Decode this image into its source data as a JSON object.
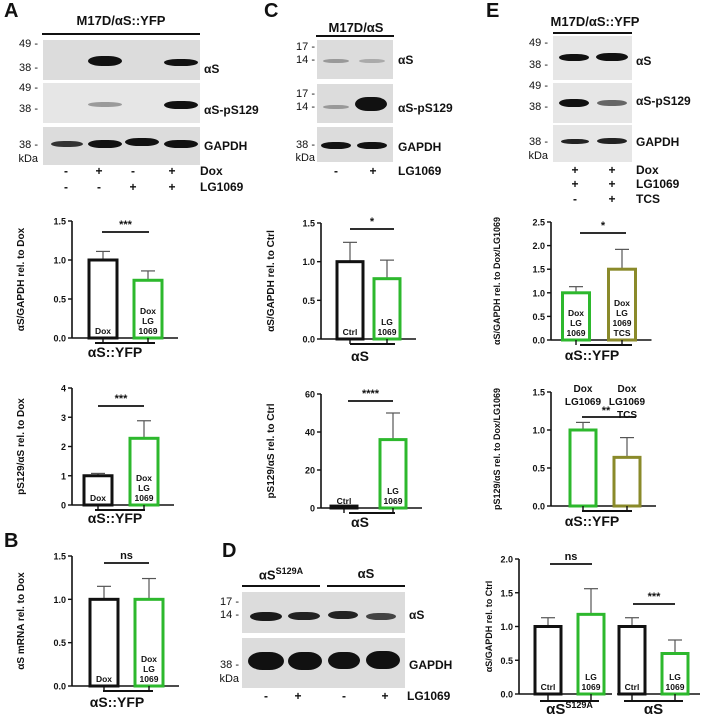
{
  "colors": {
    "control": "#111111",
    "lg1069": "#2db82d",
    "tcs": "#8a8a2a",
    "blot_bg": "#dcdcdc",
    "band": "#111111"
  },
  "panels": {
    "A": {
      "letter": "A",
      "blot_title": "M17D/αS::YFP",
      "rows": [
        {
          "label": "αS",
          "mw": [
            "49 -",
            "38 -"
          ]
        },
        {
          "label": "αS-pS129",
          "mw": [
            "49 -",
            "38 -"
          ]
        },
        {
          "label": "GAPDH",
          "mw": [
            "38 -"
          ]
        }
      ],
      "kda": "kDa",
      "treatments": [
        {
          "name": "Dox",
          "signs": [
            "-",
            "+",
            "-",
            "+"
          ]
        },
        {
          "name": "LG1069",
          "signs": [
            "-",
            "-",
            "+",
            "+"
          ]
        }
      ]
    },
    "B": {
      "letter": "B"
    },
    "C": {
      "letter": "C",
      "blot_title": "M17D/αS",
      "rows": [
        {
          "label": "αS",
          "mw": [
            "17 -",
            "14 -"
          ]
        },
        {
          "label": "αS-pS129",
          "mw": [
            "17 -",
            "14 -"
          ]
        },
        {
          "label": "GAPDH",
          "mw": [
            "38 -"
          ]
        }
      ],
      "kda": "kDa",
      "treatments": [
        {
          "name": "LG1069",
          "signs": [
            "-",
            "+"
          ]
        }
      ]
    },
    "D": {
      "letter": "D",
      "group_titles": [
        "αS",
        "αS"
      ],
      "group_superscripts": [
        "S129A",
        ""
      ],
      "rows": [
        {
          "label": "αS",
          "mw": [
            "17 -",
            "14 -"
          ]
        },
        {
          "label": "GAPDH",
          "mw": [
            "38 -"
          ]
        }
      ],
      "kda": "kDa",
      "treatments": [
        {
          "name": "LG1069",
          "signs": [
            "-",
            "+",
            "-",
            "+"
          ]
        }
      ]
    },
    "E": {
      "letter": "E",
      "blot_title": "M17D/αS::YFP",
      "rows": [
        {
          "label": "αS",
          "mw": [
            "49 -",
            "38 -"
          ]
        },
        {
          "label": "αS-pS129",
          "mw": [
            "49 -",
            "38 -"
          ]
        },
        {
          "label": "GAPDH",
          "mw": [
            "38 -"
          ]
        }
      ],
      "kda": "kDa",
      "treatments": [
        {
          "name": "Dox",
          "signs": [
            "+",
            "+"
          ]
        },
        {
          "name": "LG1069",
          "signs": [
            "+",
            "+"
          ]
        },
        {
          "name": "TCS",
          "signs": [
            "-",
            "+"
          ]
        }
      ]
    }
  },
  "chart_data": [
    {
      "id": "A1",
      "type": "bar",
      "panel": "A",
      "ylabel": "αS/GAPDH rel. to Dox",
      "xlabel": "αS::YFP",
      "ylim": [
        0,
        1.5
      ],
      "yticks": [
        "0.0",
        "0.5",
        "1.0",
        "1.5"
      ],
      "categories": [
        "Dox",
        "Dox LG 1069"
      ],
      "values": [
        1.0,
        0.74
      ],
      "errors": [
        0.11,
        0.12
      ],
      "bar_labels": [
        [
          "Dox"
        ],
        [
          "Dox",
          "LG",
          "1069"
        ]
      ],
      "significance": "***",
      "grid": false
    },
    {
      "id": "A2",
      "type": "bar",
      "panel": "A",
      "ylabel": "pS129/αS rel. to Dox",
      "xlabel": "αS::YFP",
      "ylim": [
        0,
        4
      ],
      "yticks": [
        "0",
        "1",
        "2",
        "3",
        "4"
      ],
      "categories": [
        "Dox",
        "Dox LG 1069"
      ],
      "values": [
        1.0,
        2.28
      ],
      "errors": [
        0.08,
        0.6
      ],
      "bar_labels": [
        [
          "Dox"
        ],
        [
          "Dox",
          "LG",
          "1069"
        ]
      ],
      "significance": "***",
      "grid": false
    },
    {
      "id": "B",
      "type": "bar",
      "panel": "B",
      "ylabel": "αS mRNA rel. to Dox",
      "xlabel": "αS::YFP",
      "ylim": [
        0,
        1.5
      ],
      "yticks": [
        "0.0",
        "0.5",
        "1.0",
        "1.5"
      ],
      "categories": [
        "Dox",
        "Dox LG 1069"
      ],
      "values": [
        1.0,
        1.0
      ],
      "errors": [
        0.15,
        0.24
      ],
      "bar_labels": [
        [
          "Dox"
        ],
        [
          "Dox",
          "LG",
          "1069"
        ]
      ],
      "significance": "ns",
      "grid": false
    },
    {
      "id": "C1",
      "type": "bar",
      "panel": "C",
      "ylabel": "αS/GAPDH rel. to Ctrl",
      "xlabel": "αS",
      "ylim": [
        0,
        1.5
      ],
      "yticks": [
        "0.0",
        "0.5",
        "1.0",
        "1.5"
      ],
      "categories": [
        "Ctrl",
        "LG 1069"
      ],
      "values": [
        1.0,
        0.78
      ],
      "errors": [
        0.25,
        0.24
      ],
      "bar_labels": [
        [
          "Ctrl"
        ],
        [
          "LG",
          "1069"
        ]
      ],
      "significance": "*",
      "grid": false
    },
    {
      "id": "C2",
      "type": "bar",
      "panel": "C",
      "ylabel": "pS129/αS rel. to Ctrl",
      "xlabel": "αS",
      "ylim": [
        0,
        60
      ],
      "yticks": [
        "0",
        "20",
        "40",
        "60"
      ],
      "categories": [
        "Ctrl",
        "LG 1069"
      ],
      "values": [
        1.0,
        36
      ],
      "errors": [
        0.3,
        14
      ],
      "bar_labels": [
        [
          "Ctrl"
        ],
        [
          "LG",
          "1069"
        ]
      ],
      "significance": "****",
      "grid": false
    },
    {
      "id": "E1",
      "type": "bar",
      "panel": "E",
      "ylabel": "αS/GAPDH rel. to Dox/LG1069",
      "xlabel": "αS::YFP",
      "ylim": [
        0,
        2.5
      ],
      "yticks": [
        "0.0",
        "0.5",
        "1.0",
        "1.5",
        "2.0",
        "2.5"
      ],
      "categories": [
        "Dox LG 1069",
        "Dox LG 1069 TCS"
      ],
      "values": [
        1.0,
        1.5
      ],
      "errors": [
        0.13,
        0.42
      ],
      "bar_labels": [
        [
          "Dox",
          "LG",
          "1069"
        ],
        [
          "Dox",
          "LG",
          "1069",
          "TCS"
        ]
      ],
      "significance": "*",
      "grid": false
    },
    {
      "id": "E2",
      "type": "bar",
      "panel": "E",
      "ylabel": "pS129/αS rel. to Dox/LG1069",
      "xlabel": "αS::YFP",
      "ylim": [
        0,
        1.5
      ],
      "yticks": [
        "0.0",
        "0.5",
        "1.0",
        "1.5"
      ],
      "categories": [
        "Dox LG1069",
        "Dox LG1069 TCS"
      ],
      "values": [
        1.0,
        0.64
      ],
      "errors": [
        0.1,
        0.26
      ],
      "top_labels": [
        [
          "Dox",
          "LG1069"
        ],
        [
          "Dox",
          "LG1069",
          "TCS"
        ]
      ],
      "significance": "**",
      "grid": false
    },
    {
      "id": "D1",
      "type": "bar",
      "panel": "D",
      "ylabel": "αS/GAPDH rel. to Ctrl",
      "ylim": [
        0,
        2.0
      ],
      "yticks": [
        "0.0",
        "0.5",
        "1.0",
        "1.5",
        "2.0"
      ],
      "groups": [
        {
          "name": "αS",
          "superscript": "S129A",
          "categories": [
            "Ctrl",
            "LG 1069"
          ],
          "values": [
            1.0,
            1.18
          ],
          "errors": [
            0.13,
            0.38
          ],
          "significance": "ns"
        },
        {
          "name": "αS",
          "superscript": "",
          "categories": [
            "Ctrl",
            "LG 1069"
          ],
          "values": [
            1.0,
            0.6
          ],
          "errors": [
            0.13,
            0.2
          ],
          "significance": "***"
        }
      ],
      "bar_labels": [
        [
          "Ctrl"
        ],
        [
          "LG",
          "1069"
        ],
        [
          "Ctrl"
        ],
        [
          "LG",
          "1069"
        ]
      ],
      "grid": false
    }
  ]
}
